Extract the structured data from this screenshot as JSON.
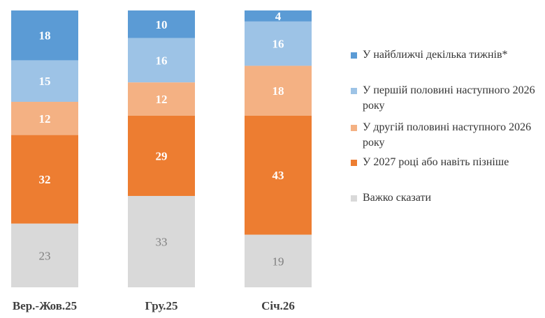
{
  "chart_data": {
    "type": "bar",
    "stacked": true,
    "categories": [
      "Вер.-Жов.25",
      "Гру.25",
      "Січ.26"
    ],
    "series": [
      {
        "name": "У найближчі декілька тижнів*",
        "color": "#5b9bd5",
        "label_color": "#ffffff",
        "values": [
          18,
          10,
          4
        ]
      },
      {
        "name": "У першій половині наступного 2026 року",
        "color": "#9dc3e6",
        "label_color": "#ffffff",
        "values": [
          15,
          16,
          16
        ]
      },
      {
        "name": "У другій половині наступного 2026 року",
        "color": "#f4b183",
        "label_color": "#ffffff",
        "values": [
          12,
          12,
          18
        ]
      },
      {
        "name": "У 2027 році або навіть пізніше",
        "color": "#ed7d31",
        "label_color": "#ffffff",
        "values": [
          32,
          29,
          43
        ]
      },
      {
        "name": "Важко сказати",
        "color": "#d9d9d9",
        "label_color": "#7f7f7f",
        "values": [
          23,
          33,
          19
        ]
      }
    ],
    "ylim": [
      0,
      100
    ],
    "grid": false,
    "legend_placement": "right"
  }
}
